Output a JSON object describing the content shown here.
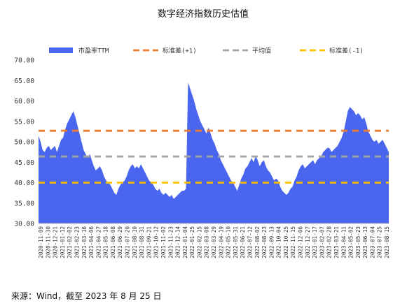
{
  "chart_data": {
    "type": "area",
    "title": "数字经济指数历史估值",
    "source": "来源：Wind，截至 2023 年 8 月 25 日",
    "ylim": [
      30,
      70
    ],
    "yticks": [
      "30.00",
      "35.00",
      "40.00",
      "45.00",
      "50.00",
      "55.00",
      "60.00",
      "65.00",
      "70.00"
    ],
    "ytick_values": [
      30,
      35,
      40,
      45,
      50,
      55,
      60,
      65,
      70
    ],
    "legend_position": "top",
    "x_tick_labels": [
      "2020-11-09",
      "2020-11-30",
      "2020-12-21",
      "2021-01-12",
      "2021-02-02",
      "2021-02-23",
      "2021-03-16",
      "2021-04-06",
      "2021-04-27",
      "2021-05-18",
      "2021-06-08",
      "2021-06-29",
      "2021-07-20",
      "2021-08-10",
      "2021-08-31",
      "2021-09-21",
      "2021-10-12",
      "2021-11-02",
      "2021-11-23",
      "2021-12-14",
      "2022-01-04",
      "2022-01-25",
      "2022-02-15",
      "2022-03-08",
      "2022-03-29",
      "2022-04-19",
      "2022-05-10",
      "2022-05-31",
      "2022-06-21",
      "2022-07-12",
      "2022-08-02",
      "2022-08-23",
      "2022-09-13",
      "2022-10-04",
      "2022-10-25",
      "2022-11-15",
      "2022-12-06",
      "2022-12-27",
      "2023-01-17",
      "2023-02-07",
      "2023-02-28",
      "2023-03-21",
      "2023-04-11",
      "2023-05-02",
      "2023-05-23",
      "2023-06-13",
      "2023-07-04",
      "2023-07-25",
      "2023-08-15"
    ],
    "series": [
      {
        "name": "市盈率TTM",
        "kind": "area",
        "color": "#4a65ee",
        "values": [
          51.5,
          50.0,
          48.0,
          47.5,
          48.5,
          49.0,
          48.0,
          48.5,
          49.0,
          47.5,
          49.0,
          50.5,
          51.0,
          53.0,
          54.5,
          55.5,
          56.5,
          57.5,
          56.0,
          54.0,
          52.0,
          50.0,
          48.0,
          47.0,
          46.0,
          47.0,
          45.5,
          44.0,
          43.0,
          43.5,
          44.0,
          43.0,
          41.5,
          40.5,
          40.0,
          39.5,
          38.5,
          37.5,
          37.0,
          38.5,
          39.5,
          40.0,
          40.5,
          41.5,
          43.0,
          44.0,
          44.5,
          43.5,
          44.0,
          43.5,
          44.5,
          43.5,
          42.5,
          41.5,
          40.5,
          40.0,
          39.5,
          38.5,
          38.0,
          38.5,
          37.5,
          37.0,
          37.5,
          37.0,
          36.5,
          37.0,
          36.0,
          36.5,
          37.0,
          37.5,
          38.0,
          38.0,
          38.5,
          64.5,
          63.0,
          61.5,
          60.0,
          58.0,
          56.5,
          55.0,
          54.0,
          53.0,
          52.0,
          53.5,
          52.0,
          50.5,
          49.5,
          48.0,
          47.0,
          45.5,
          44.5,
          43.5,
          42.5,
          41.5,
          40.5,
          40.0,
          39.0,
          38.0,
          39.5,
          41.0,
          42.0,
          43.5,
          44.0,
          45.0,
          46.0,
          45.0,
          46.5,
          45.5,
          44.0,
          45.0,
          45.5,
          44.0,
          43.0,
          42.5,
          41.5,
          40.5,
          41.0,
          40.5,
          39.0,
          38.0,
          37.5,
          37.0,
          37.5,
          38.5,
          39.0,
          40.5,
          41.5,
          43.0,
          44.0,
          44.5,
          43.5,
          44.0,
          44.5,
          45.0,
          45.5,
          44.5,
          45.5,
          46.0,
          46.5,
          47.5,
          48.0,
          48.5,
          48.5,
          47.5,
          48.0,
          48.5,
          49.0,
          50.0,
          51.0,
          52.5,
          55.0,
          57.5,
          58.5,
          58.0,
          57.5,
          56.5,
          57.0,
          56.5,
          55.5,
          56.0,
          54.5,
          52.5,
          51.5,
          50.5,
          50.0,
          50.5,
          49.5,
          50.0,
          50.5,
          49.5,
          48.5,
          47.5
        ]
      },
      {
        "name": "标准差(+1)",
        "kind": "hline",
        "value": 52.7,
        "color": "#ed7d31"
      },
      {
        "name": "平均值",
        "kind": "hline",
        "value": 46.4,
        "color": "#a5a5a5"
      },
      {
        "name": "标准差(-1)",
        "kind": "hline",
        "value": 40.0,
        "color": "#ffc000"
      }
    ]
  }
}
